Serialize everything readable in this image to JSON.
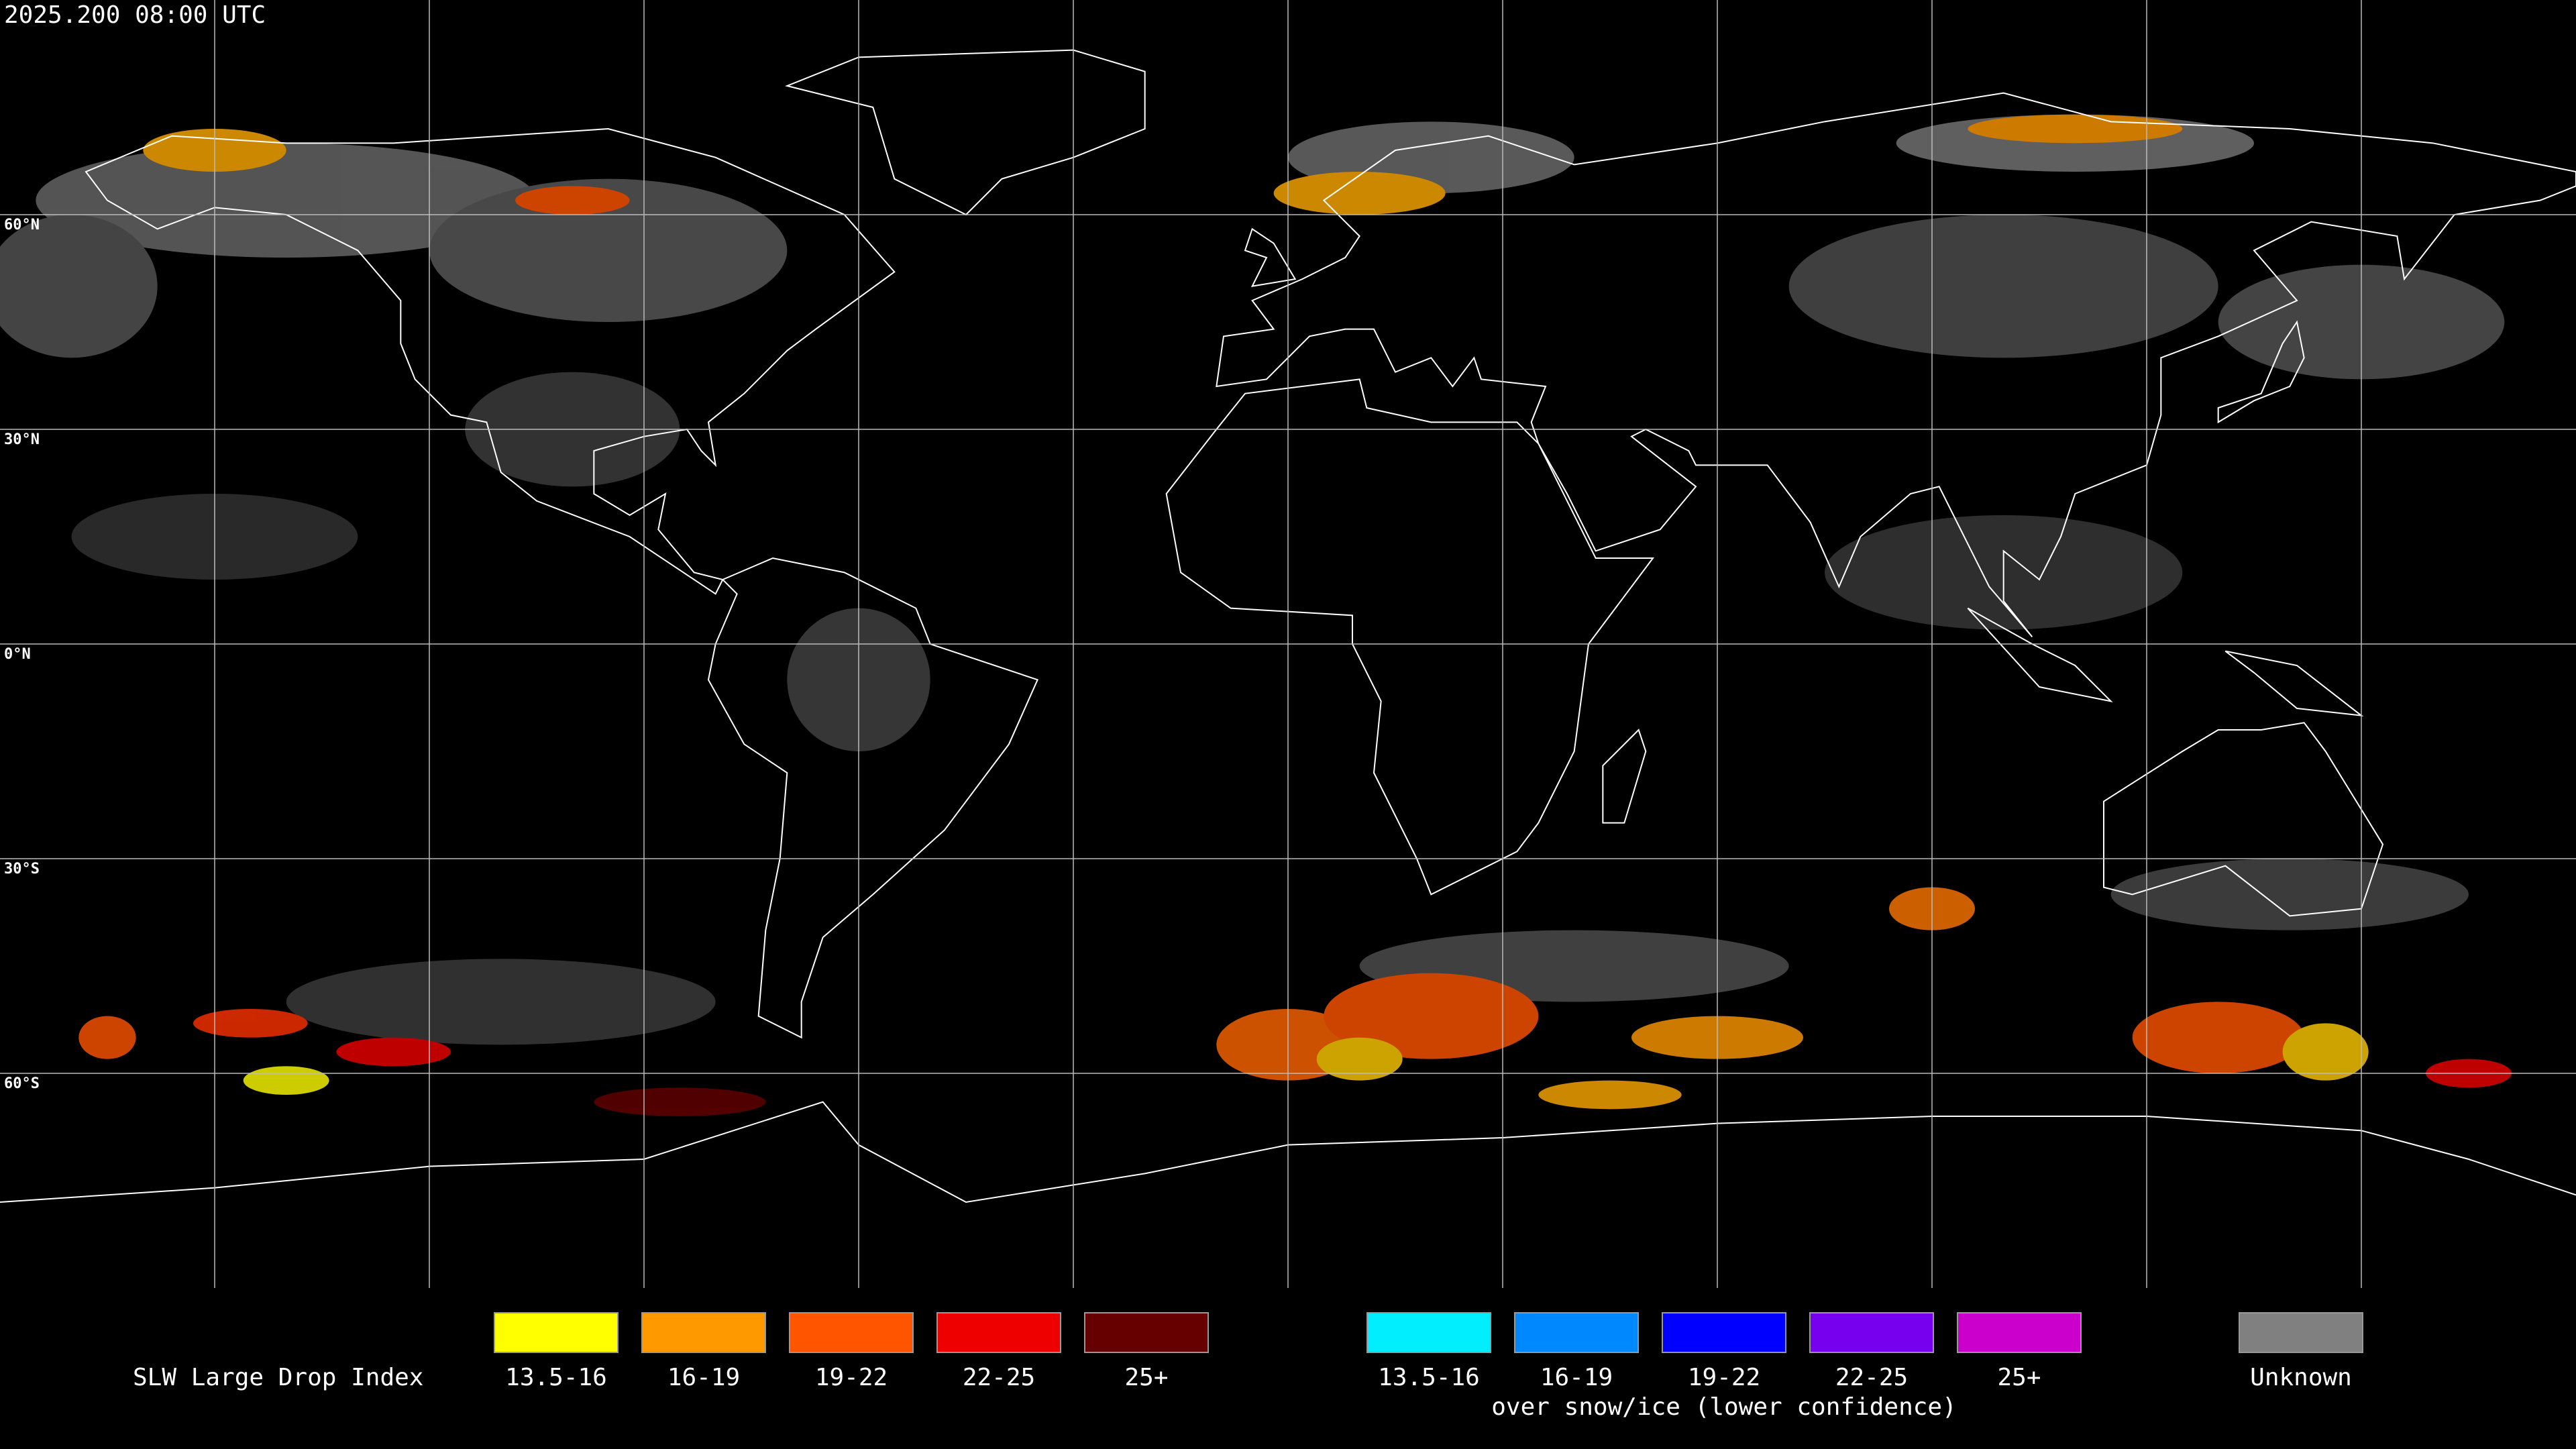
{
  "header": {
    "timestamp": "2025.200 08:00 UTC"
  },
  "map": {
    "lat_lines": [
      {
        "value": 60,
        "label": "60°N"
      },
      {
        "value": 30,
        "label": "30°N"
      },
      {
        "value": 0,
        "label": "0°N"
      },
      {
        "value": -30,
        "label": "30°S"
      },
      {
        "value": -60,
        "label": "60°S"
      }
    ]
  },
  "legend": {
    "title": "SLW Large Drop Index",
    "groups": [
      {
        "items": [
          {
            "label": "13.5-16",
            "color": "#ffff00"
          },
          {
            "label": "16-19",
            "color": "#ff9900"
          },
          {
            "label": "19-22",
            "color": "#ff5500"
          },
          {
            "label": "22-25",
            "color": "#ee0000"
          },
          {
            "label": "25+",
            "color": "#660000"
          }
        ]
      },
      {
        "caption": "over snow/ice (lower confidence)",
        "items": [
          {
            "label": "13.5-16",
            "color": "#00eeff"
          },
          {
            "label": "16-19",
            "color": "#0088ff"
          },
          {
            "label": "19-22",
            "color": "#0000ff"
          },
          {
            "label": "22-25",
            "color": "#7700ee"
          },
          {
            "label": "25+",
            "color": "#cc00cc"
          }
        ]
      },
      {
        "items": [
          {
            "label": "Unknown",
            "color": "#808080"
          }
        ]
      }
    ]
  }
}
